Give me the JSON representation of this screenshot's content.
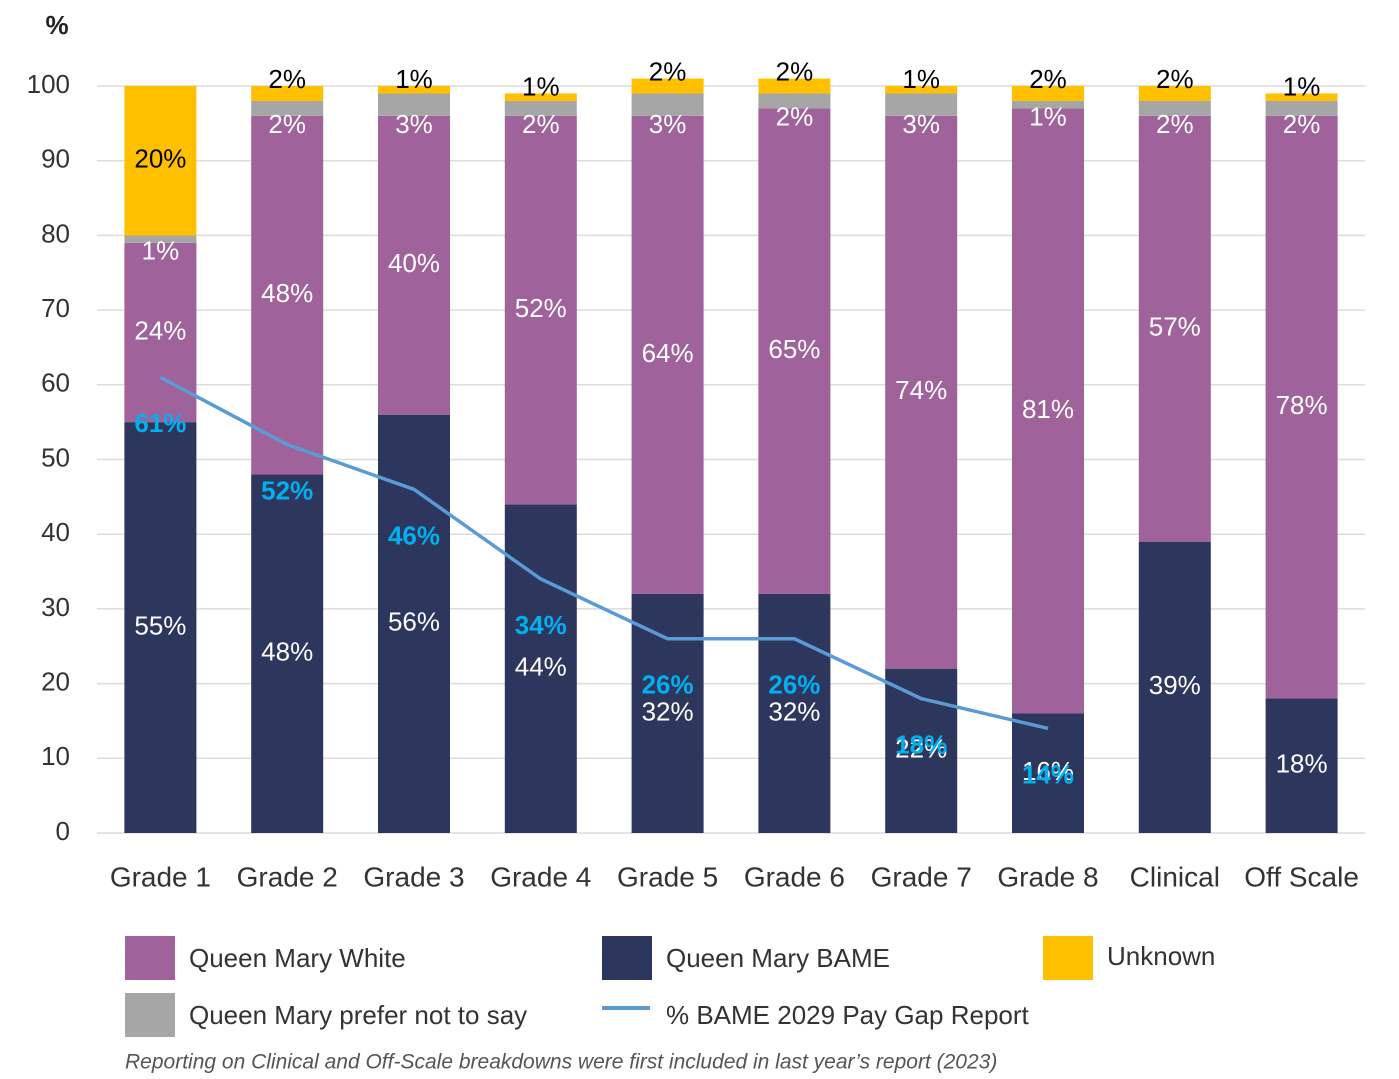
{
  "chart_data": {
    "type": "bar",
    "stacked": true,
    "y_label": "%",
    "footnote": "Reporting on Clinical and Off-Scale breakdowns were first included in last year’s report (2023)",
    "categories": [
      "Grade 1",
      "Grade 2",
      "Grade 3",
      "Grade 4",
      "Grade 5",
      "Grade 6",
      "Grade 7",
      "Grade 8",
      "Clinical",
      "Off Scale"
    ],
    "series": [
      {
        "name": "Queen Mary BAME",
        "color": "#2d365c",
        "values": [
          55,
          48,
          56,
          44,
          32,
          32,
          22,
          16,
          39,
          18
        ],
        "value_labels": [
          "55%",
          "48%",
          "56%",
          "44%",
          "32%",
          "32%",
          "22%",
          "16%",
          "39%",
          "18%"
        ]
      },
      {
        "name": "Queen Mary White",
        "color": "#a0629a",
        "values": [
          24,
          48,
          40,
          52,
          64,
          65,
          74,
          81,
          57,
          78
        ],
        "value_labels": [
          "24%",
          "48%",
          "40%",
          "52%",
          "64%",
          "65%",
          "74%",
          "81%",
          "57%",
          "78%"
        ]
      },
      {
        "name": "Queen Mary prefer not to say",
        "color": "#a6a6a6",
        "values": [
          1,
          2,
          3,
          2,
          3,
          2,
          3,
          1,
          2,
          2
        ],
        "value_labels": [
          "1%",
          "2%",
          "3%",
          "2%",
          "3%",
          "2%",
          "3%",
          "1%",
          "2%",
          "2%"
        ]
      },
      {
        "name": "Unknown",
        "color": "#ffc000",
        "values": [
          20,
          2,
          1,
          1,
          2,
          2,
          1,
          2,
          2,
          1
        ],
        "value_labels": [
          "20%",
          "2%",
          "1%",
          "1%",
          "2%",
          "2%",
          "1%",
          "2%",
          "2%",
          "1%"
        ]
      },
      {
        "name": "% BAME 2029 Pay Gap Report",
        "type": "line",
        "color": "#5b9bd5",
        "label_color": "#00b0f0",
        "values": [
          61,
          52,
          46,
          34,
          26,
          26,
          18,
          14,
          null,
          null
        ],
        "value_labels": [
          "61%",
          "52%",
          "46%",
          "34%",
          "26%",
          "26%",
          "18%",
          "14%",
          null,
          null
        ]
      }
    ],
    "ylim": [
      0,
      100
    ],
    "yticks": [
      0,
      10,
      20,
      30,
      40,
      50,
      60,
      70,
      80,
      90,
      100
    ],
    "grid": true
  }
}
